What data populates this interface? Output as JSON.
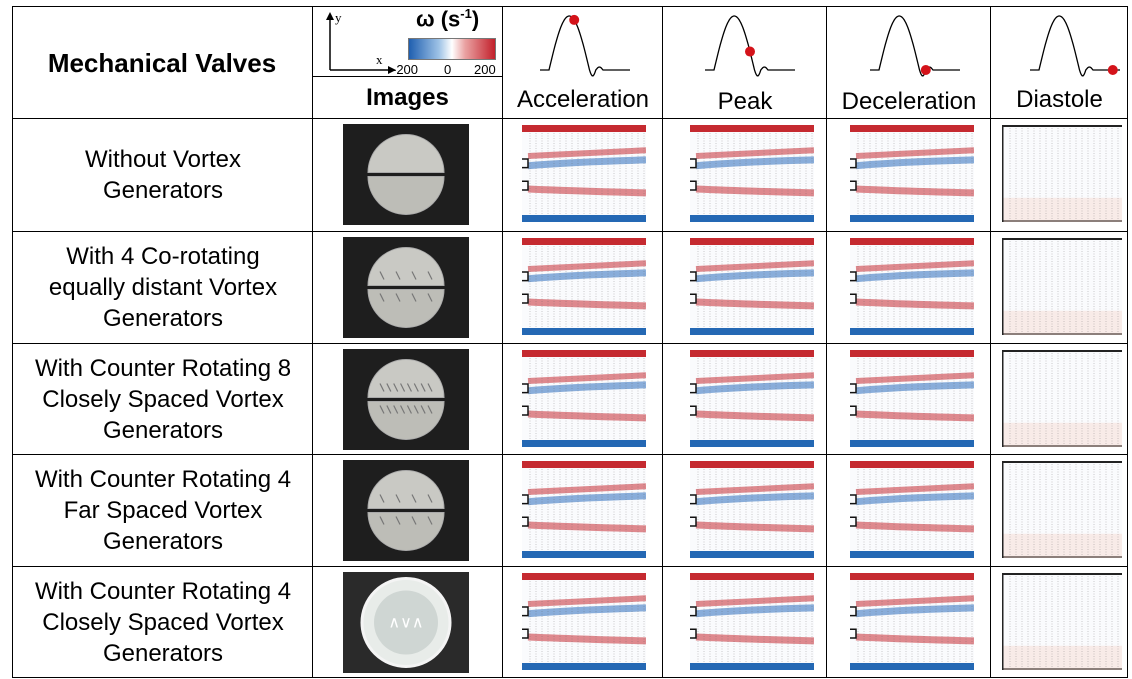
{
  "header": {
    "title": "Mechanical Valves",
    "images_label": "Images",
    "colorbar": {
      "symbol": "ω (s",
      "unit_exp": "-1",
      "unit_close": ")",
      "ticks": [
        "-200",
        "0",
        "200"
      ],
      "min": -200,
      "max": 200,
      "colors": [
        "#1f5fb0",
        "#ffffff",
        "#c2202b"
      ]
    },
    "axes": {
      "y": "y",
      "x": "x"
    },
    "phases": [
      {
        "label": "Acceleration",
        "marker_t": 0.38
      },
      {
        "label": "Peak",
        "marker_t": 0.5
      },
      {
        "label": "Deceleration",
        "marker_t": 0.62
      },
      {
        "label": "Diastole",
        "marker_t": 0.92
      }
    ]
  },
  "rows": [
    {
      "label": "Without Vortex\nGenerators",
      "valve": "plain"
    },
    {
      "label": "With 4 Co-rotating\nequally distant Vortex\nGenerators",
      "valve": "co4"
    },
    {
      "label": "With Counter Rotating 8\nClosely Spaced Vortex\nGenerators",
      "valve": "cr8"
    },
    {
      "label": "With Counter Rotating 4\nFar Spaced Vortex\nGenerators",
      "valve": "cr4far"
    },
    {
      "label": "With Counter Rotating 4\nClosely Spaced Vortex\nGenerators",
      "valve": "cr4close"
    }
  ]
}
